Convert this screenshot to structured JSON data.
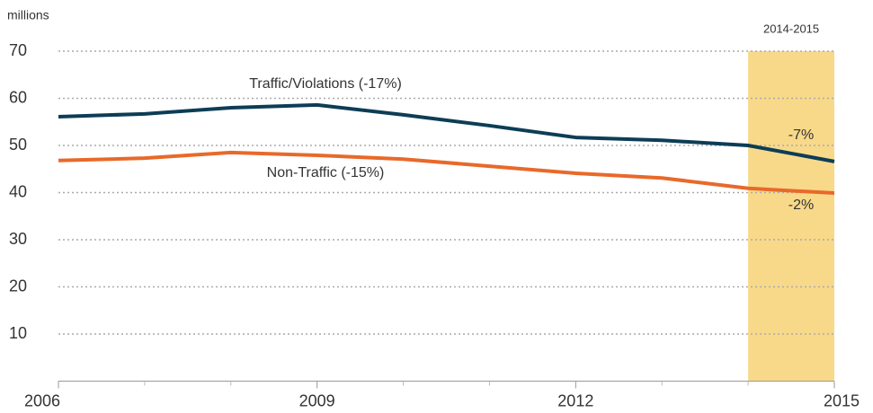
{
  "chart_data": {
    "type": "line",
    "y_axis_label": "millions",
    "x": [
      2006,
      2007,
      2008,
      2009,
      2010,
      2011,
      2012,
      2013,
      2014,
      2015
    ],
    "series": [
      {
        "name": "Traffic/Violations (-17%)",
        "color": "#0d3d56",
        "values": [
          56.1,
          56.7,
          58,
          58.6,
          56.5,
          54.2,
          51.7,
          51.1,
          50,
          46.6
        ],
        "change_label": "-7%"
      },
      {
        "name": "Non-Traffic (-15%)",
        "color": "#e8692a",
        "values": [
          46.8,
          47.3,
          48.5,
          47.9,
          47.1,
          45.6,
          44.1,
          43.1,
          40.9,
          39.9
        ],
        "change_label": "-2%"
      }
    ],
    "highlight": {
      "range": [
        2014,
        2015
      ],
      "label": "2014-2015",
      "color": "#f8d98a"
    },
    "xlim": [
      2006,
      2015
    ],
    "xticks": [
      2006,
      2009,
      2012,
      2015
    ],
    "x_minor_ticks": [
      2007,
      2008,
      2010,
      2011,
      2013,
      2014
    ],
    "ylim": [
      0,
      70
    ],
    "yticks": [
      10,
      20,
      30,
      40,
      50,
      60,
      70
    ],
    "grid": true
  }
}
